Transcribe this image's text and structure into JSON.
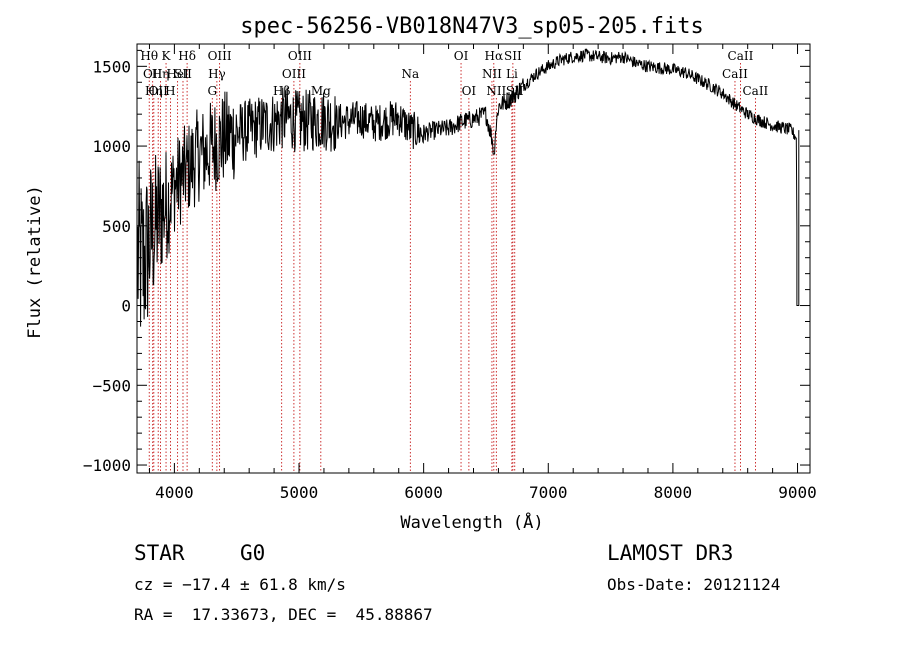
{
  "chart_data": {
    "type": "line",
    "title": "spec-56256-VB018N47V3_sp05-205.fits",
    "xlabel": "Wavelength (Å)",
    "ylabel": "Flux (relative)",
    "xlim": [
      3700,
      9100
    ],
    "ylim": [
      -1050,
      1640
    ],
    "xticks": [
      4000,
      5000,
      6000,
      7000,
      8000,
      9000
    ],
    "xtick_labels": [
      "4000",
      "5000",
      "6000",
      "7000",
      "8000",
      "9000"
    ],
    "yticks": [
      -1000,
      -500,
      0,
      500,
      1000,
      1500
    ],
    "ytick_labels": [
      "−1000",
      "−500",
      "0",
      "500",
      "1000",
      "1500"
    ],
    "spectrum": {
      "name": "flux",
      "x": [
        3700,
        3750,
        3800,
        3850,
        3900,
        3950,
        4000,
        4050,
        4100,
        4150,
        4200,
        4250,
        4300,
        4350,
        4400,
        4500,
        4600,
        4700,
        4800,
        4900,
        5000,
        5100,
        5200,
        5300,
        5400,
        5500,
        5600,
        5700,
        5800,
        5900,
        6000,
        6100,
        6200,
        6300,
        6400,
        6500,
        6563,
        6600,
        6700,
        6800,
        6900,
        7000,
        7100,
        7200,
        7300,
        7400,
        7500,
        7600,
        7700,
        7800,
        7900,
        8000,
        8100,
        8200,
        8300,
        8400,
        8500,
        8600,
        8700,
        8800,
        8950,
        8990,
        9000,
        9010
      ],
      "y": [
        300,
        250,
        400,
        500,
        600,
        650,
        750,
        800,
        850,
        900,
        950,
        950,
        1000,
        1020,
        1050,
        1080,
        1100,
        1130,
        1150,
        1180,
        1150,
        1160,
        1170,
        1150,
        1160,
        1170,
        1140,
        1160,
        1180,
        1100,
        1080,
        1100,
        1110,
        1150,
        1170,
        1200,
        1000,
        1250,
        1300,
        1380,
        1450,
        1500,
        1540,
        1560,
        1570,
        1560,
        1550,
        1560,
        1520,
        1500,
        1490,
        1480,
        1460,
        1420,
        1380,
        1330,
        1260,
        1200,
        1160,
        1130,
        1100,
        1050,
        0,
        1100
      ]
    },
    "line_markers": [
      {
        "x": 3798,
        "label": "Hθ",
        "row": 0
      },
      {
        "x": 3826,
        "label": "OII",
        "row": 1
      },
      {
        "x": 3835,
        "label": "Hη",
        "row": 2
      },
      {
        "x": 3870,
        "label": "OII",
        "row": 2
      },
      {
        "x": 3889,
        "label": "Hη",
        "row": 1
      },
      {
        "x": 3933,
        "label": "K",
        "row": 0
      },
      {
        "x": 3968,
        "label": "H",
        "row": 2
      },
      {
        "x": 4026,
        "label": "HeI",
        "row": 1
      },
      {
        "x": 4069,
        "label": "SII",
        "row": 1
      },
      {
        "x": 4102,
        "label": "Hδ",
        "row": 0
      },
      {
        "x": 4304,
        "label": "G",
        "row": 2
      },
      {
        "x": 4341,
        "label": "Hγ",
        "row": 1
      },
      {
        "x": 4363,
        "label": "OIII",
        "row": 0
      },
      {
        "x": 4861,
        "label": "Hβ",
        "row": 2
      },
      {
        "x": 4959,
        "label": "OIII",
        "row": 1
      },
      {
        "x": 5007,
        "label": "OIII",
        "row": 0
      },
      {
        "x": 5175,
        "label": "Mg",
        "row": 2
      },
      {
        "x": 5893,
        "label": "Na",
        "row": 1
      },
      {
        "x": 6300,
        "label": "OI",
        "row": 0
      },
      {
        "x": 6363,
        "label": "OI",
        "row": 2
      },
      {
        "x": 6548,
        "label": "NII",
        "row": 1
      },
      {
        "x": 6563,
        "label": "Hα",
        "row": 0
      },
      {
        "x": 6583,
        "label": "NII",
        "row": 2
      },
      {
        "x": 6708,
        "label": "Li",
        "row": 1
      },
      {
        "x": 6716,
        "label": "SII",
        "row": 0
      },
      {
        "x": 6731,
        "label": "SII",
        "row": 2
      },
      {
        "x": 8498,
        "label": "CaII",
        "row": 1
      },
      {
        "x": 8542,
        "label": "CaII",
        "row": 0
      },
      {
        "x": 8662,
        "label": "CaII",
        "row": 2
      }
    ]
  },
  "info": {
    "object_class": "STAR",
    "subclass": "G0",
    "survey": "LAMOST DR3",
    "cz": "cz = −17.4 ± 61.8 km/s",
    "obs_date": "Obs-Date: 20121124",
    "coords": "RA =  17.33673, DEC =  45.88867"
  },
  "colors": {
    "axis": "#000000",
    "spectrum": "#000000",
    "marker_line": "#c00000",
    "background": "#ffffff"
  }
}
